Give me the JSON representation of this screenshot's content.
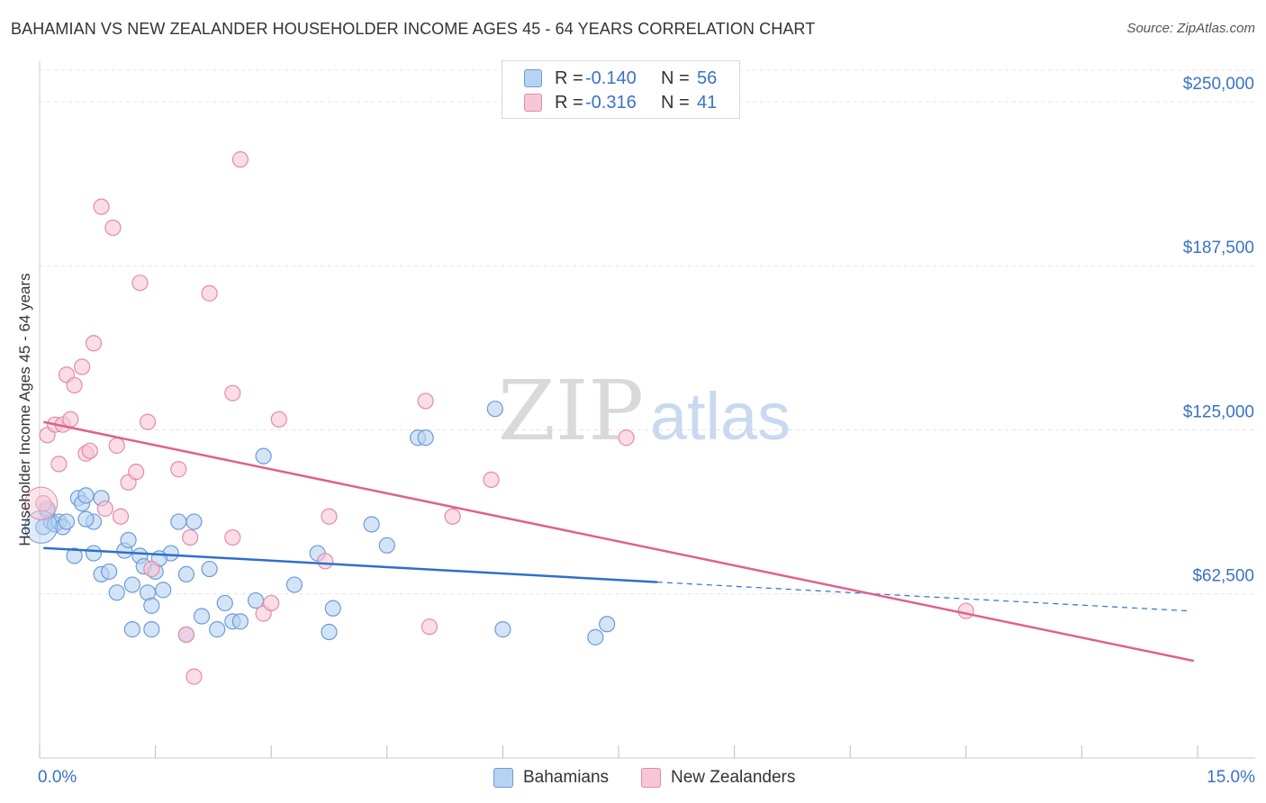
{
  "title": "BAHAMIAN VS NEW ZEALANDER HOUSEHOLDER INCOME AGES 45 - 64 YEARS CORRELATION CHART",
  "source": "Source: ZipAtlas.com",
  "watermark": {
    "zip": "ZIP",
    "atlas": "atlas"
  },
  "legend": {
    "rows": [
      {
        "r_label": "R =",
        "r_value": "-0.140",
        "n_label": "N =",
        "n_value": "56",
        "fill": "#b7d2f2",
        "stroke": "#6c9bd8"
      },
      {
        "r_label": "R =",
        "r_value": "-0.316",
        "n_label": "N =",
        "n_value": "41",
        "fill": "#f7c6d5",
        "stroke": "#e58aa8"
      }
    ]
  },
  "bottom_legend": [
    {
      "label": "Bahamians",
      "fill": "#b7d2f2",
      "stroke": "#6c9bd8"
    },
    {
      "label": "New Zealanders",
      "fill": "#f7c6d5",
      "stroke": "#e58aa8"
    }
  ],
  "chart_data": {
    "type": "scatter",
    "title": "BAHAMIAN VS NEW ZEALANDER HOUSEHOLDER INCOME AGES 45 - 64 YEARS CORRELATION CHART",
    "xlabel": "",
    "ylabel": "Householder Income Ages 45 - 64 years",
    "xlim": [
      0,
      15
    ],
    "ylim": [
      0,
      262000
    ],
    "x_tick_labels": [
      {
        "value": 0,
        "label": "0.0%"
      },
      {
        "value": 15,
        "label": "15.0%"
      }
    ],
    "y_tick_labels": [
      {
        "value": 62500,
        "label": "$62,500"
      },
      {
        "value": 125000,
        "label": "$125,000"
      },
      {
        "value": 187500,
        "label": "$187,500"
      },
      {
        "value": 250000,
        "label": "$250,000"
      }
    ],
    "grid": true,
    "legend_position": "top-center",
    "series": [
      {
        "name": "Bahamians",
        "color": "#6c9bd8",
        "fill": "#b7d2f2",
        "line_color": "#2f6fcc",
        "trend": {
          "x_start": 0.05,
          "y_start": 80000,
          "x_end": 8.0,
          "y_end": 67000,
          "x_dash_end": 14.9,
          "y_dash_end": 56000
        },
        "points": [
          [
            0.05,
            88000
          ],
          [
            0.1,
            94000
          ],
          [
            0.15,
            90000
          ],
          [
            0.2,
            89000
          ],
          [
            0.25,
            90000
          ],
          [
            0.3,
            88000
          ],
          [
            0.35,
            90000
          ],
          [
            0.5,
            99000
          ],
          [
            0.55,
            97000
          ],
          [
            0.6,
            100000
          ],
          [
            0.7,
            90000
          ],
          [
            0.8,
            99000
          ],
          [
            0.45,
            77000
          ],
          [
            0.7,
            78000
          ],
          [
            0.8,
            70000
          ],
          [
            0.9,
            71000
          ],
          [
            1.0,
            63000
          ],
          [
            1.1,
            79000
          ],
          [
            1.15,
            83000
          ],
          [
            1.2,
            66000
          ],
          [
            1.3,
            77000
          ],
          [
            1.35,
            73000
          ],
          [
            1.4,
            63000
          ],
          [
            1.45,
            58000
          ],
          [
            1.5,
            71000
          ],
          [
            1.6,
            64000
          ],
          [
            1.7,
            78000
          ],
          [
            1.8,
            90000
          ],
          [
            1.9,
            70000
          ],
          [
            2.0,
            90000
          ],
          [
            2.1,
            54000
          ],
          [
            2.2,
            72000
          ],
          [
            2.3,
            49000
          ],
          [
            2.4,
            59000
          ],
          [
            2.5,
            52000
          ],
          [
            2.6,
            52000
          ],
          [
            2.8,
            60000
          ],
          [
            2.9,
            115000
          ],
          [
            3.3,
            66000
          ],
          [
            3.6,
            78000
          ],
          [
            3.8,
            57000
          ],
          [
            4.3,
            89000
          ],
          [
            4.5,
            81000
          ],
          [
            4.9,
            122000
          ],
          [
            5.0,
            122000
          ],
          [
            5.9,
            133000
          ],
          [
            6.0,
            49000
          ],
          [
            7.2,
            46000
          ],
          [
            7.35,
            51000
          ],
          [
            1.9,
            47000
          ],
          [
            1.45,
            49000
          ],
          [
            1.2,
            49000
          ],
          [
            3.75,
            48000
          ],
          [
            0.1,
            95000
          ],
          [
            0.6,
            91000
          ],
          [
            1.55,
            76000
          ]
        ]
      },
      {
        "name": "New Zealanders",
        "color": "#e58aa8",
        "fill": "#f7c6d5",
        "line_color": "#e0608c",
        "trend": {
          "x_start": 0.05,
          "y_start": 128000,
          "x_end": 14.95,
          "y_end": 37000
        },
        "points": [
          [
            0.05,
            97000
          ],
          [
            0.1,
            123000
          ],
          [
            0.2,
            127000
          ],
          [
            0.25,
            112000
          ],
          [
            0.3,
            127000
          ],
          [
            0.35,
            146000
          ],
          [
            0.4,
            129000
          ],
          [
            0.45,
            142000
          ],
          [
            0.55,
            149000
          ],
          [
            0.6,
            116000
          ],
          [
            0.65,
            117000
          ],
          [
            0.7,
            158000
          ],
          [
            0.8,
            210000
          ],
          [
            0.85,
            95000
          ],
          [
            0.95,
            202000
          ],
          [
            1.0,
            119000
          ],
          [
            1.05,
            92000
          ],
          [
            1.15,
            105000
          ],
          [
            1.25,
            109000
          ],
          [
            1.3,
            181000
          ],
          [
            1.4,
            128000
          ],
          [
            1.45,
            72000
          ],
          [
            1.8,
            110000
          ],
          [
            1.9,
            47000
          ],
          [
            1.95,
            84000
          ],
          [
            2.0,
            31000
          ],
          [
            2.2,
            177000
          ],
          [
            2.5,
            139000
          ],
          [
            2.5,
            84000
          ],
          [
            2.6,
            228000
          ],
          [
            2.9,
            55000
          ],
          [
            3.0,
            59000
          ],
          [
            3.1,
            129000
          ],
          [
            3.7,
            75000
          ],
          [
            3.75,
            92000
          ],
          [
            5.0,
            136000
          ],
          [
            5.05,
            50000
          ],
          [
            5.35,
            92000
          ],
          [
            5.85,
            106000
          ],
          [
            7.6,
            122000
          ],
          [
            12.0,
            56000
          ]
        ]
      }
    ]
  }
}
